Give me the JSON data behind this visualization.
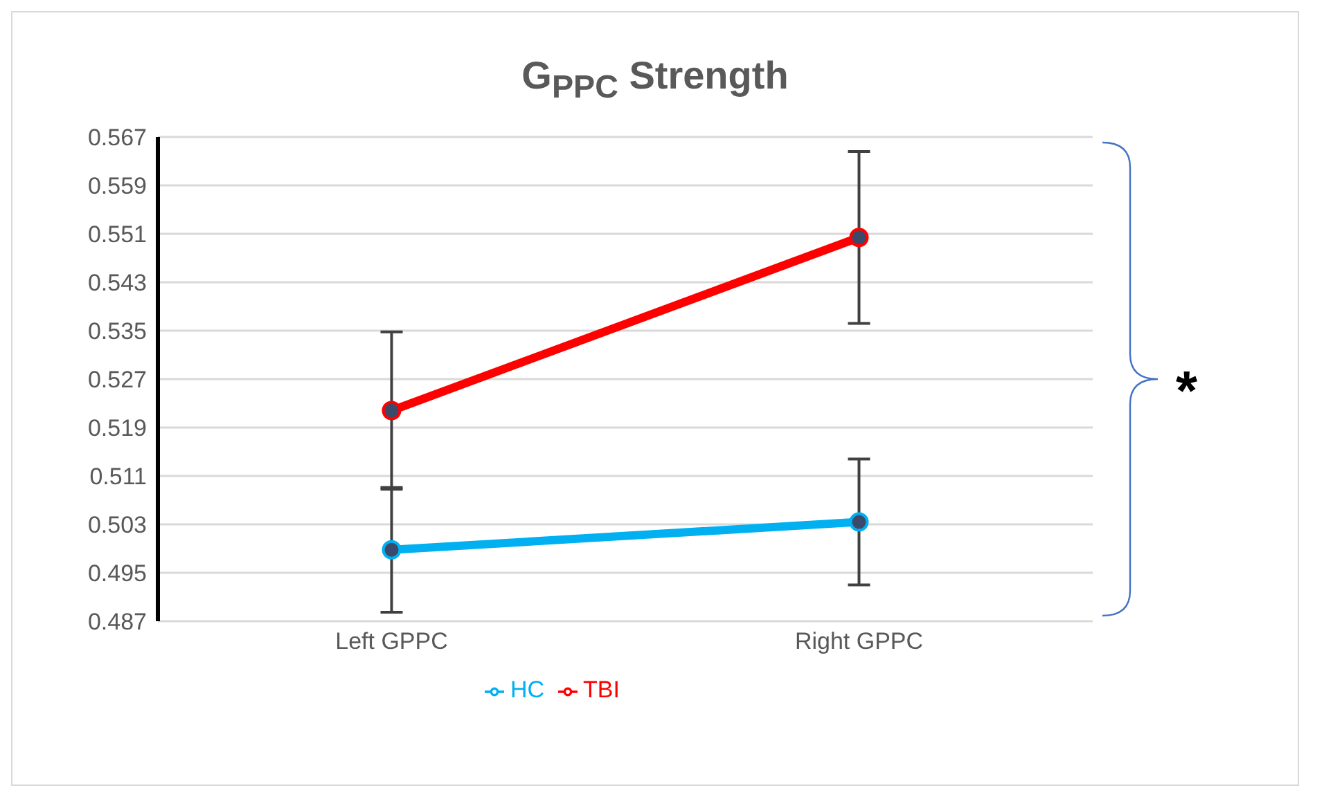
{
  "chart_data": {
    "type": "line",
    "title": "G$_{PPC}$ Strength",
    "categories": [
      "Left GPPC",
      "Right GPPC"
    ],
    "series": [
      {
        "name": "HC",
        "color": "#00b0f0",
        "values": [
          0.4988,
          0.5034
        ],
        "errors": [
          0.0103,
          0.0104
        ]
      },
      {
        "name": "TBI",
        "color": "#ff0000",
        "values": [
          0.5218,
          0.5504
        ],
        "errors": [
          0.013,
          0.0142
        ]
      }
    ],
    "ylim": [
      0.487,
      0.567
    ],
    "yticks": [
      0.487,
      0.495,
      0.503,
      0.511,
      0.519,
      0.527,
      0.535,
      0.543,
      0.551,
      0.559,
      0.567
    ],
    "grid": "y",
    "legend": "bottom",
    "marker": "circle",
    "line_style": "solid",
    "annotations": [
      "*"
    ]
  }
}
